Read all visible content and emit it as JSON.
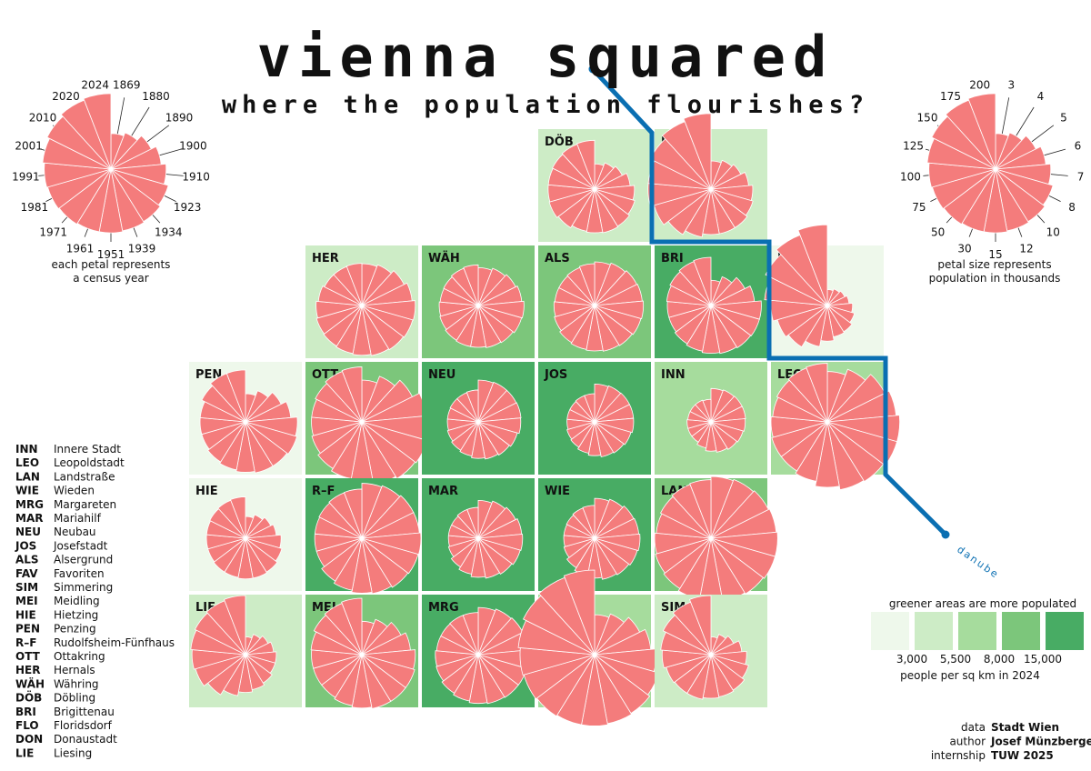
{
  "header": {
    "title": "vienna squared",
    "subtitle": "where the population flourishes?"
  },
  "river_label": "danube",
  "key_years": {
    "labels": [
      "1869",
      "1880",
      "1890",
      "1900",
      "1910",
      "1923",
      "1934",
      "1939",
      "1951",
      "1961",
      "1971",
      "1981",
      "1991",
      "2001",
      "2010",
      "2020",
      "2024"
    ],
    "caption_line1": "each petal represents",
    "caption_line2": "a census year"
  },
  "key_size": {
    "labels": [
      "3",
      "4",
      "5",
      "6",
      "7",
      "8",
      "10",
      "12",
      "15",
      "30",
      "50",
      "75",
      "100",
      "125",
      "150",
      "175",
      "200"
    ],
    "caption_line1": "petal size represents",
    "caption_line2": "population in thousands"
  },
  "density_legend": {
    "title": "greener areas are more populated",
    "thresholds": [
      "3,000",
      "5,500",
      "8,000",
      "15,000"
    ],
    "caption": "people per sq km in 2024"
  },
  "credits": [
    {
      "label": "data",
      "value": "Stadt Wien"
    },
    {
      "label": "author",
      "value": "Josef Münzberger"
    },
    {
      "label": "internship",
      "value": "TUW 2025"
    }
  ],
  "district_legend": [
    {
      "code": "INN",
      "name": "Innere Stadt"
    },
    {
      "code": "LEO",
      "name": "Leopoldstadt"
    },
    {
      "code": "LAN",
      "name": "Landstraße"
    },
    {
      "code": "WIE",
      "name": "Wieden"
    },
    {
      "code": "MRG",
      "name": "Margareten"
    },
    {
      "code": "MAR",
      "name": "Mariahilf"
    },
    {
      "code": "NEU",
      "name": "Neubau"
    },
    {
      "code": "JOS",
      "name": "Josefstadt"
    },
    {
      "code": "ALS",
      "name": "Alsergrund"
    },
    {
      "code": "FAV",
      "name": "Favoriten"
    },
    {
      "code": "SIM",
      "name": "Simmering"
    },
    {
      "code": "MEI",
      "name": "Meidling"
    },
    {
      "code": "HIE",
      "name": "Hietzing"
    },
    {
      "code": "PEN",
      "name": "Penzing"
    },
    {
      "code": "R–F",
      "name": "Rudolfsheim-Fünfhaus"
    },
    {
      "code": "OTT",
      "name": "Ottakring"
    },
    {
      "code": "HER",
      "name": "Hernals"
    },
    {
      "code": "WÄH",
      "name": "Währing"
    },
    {
      "code": "DÖB",
      "name": "Döbling"
    },
    {
      "code": "BRI",
      "name": "Brigittenau"
    },
    {
      "code": "FLO",
      "name": "Floridsdorf"
    },
    {
      "code": "DON",
      "name": "Donaustadt"
    },
    {
      "code": "LIE",
      "name": "Liesing"
    }
  ],
  "colors": {
    "petal": "#f47c7c",
    "petal_stroke": "#ffffff",
    "river": "#0a6fb2",
    "density": [
      "#eef8eb",
      "#cdecc6",
      "#a6dc9d",
      "#7cc67b",
      "#48ac64"
    ]
  },
  "chart_data": {
    "type": "rose-grid",
    "petal_unit": "population in thousands",
    "years": [
      "1869",
      "1880",
      "1890",
      "1900",
      "1910",
      "1923",
      "1934",
      "1939",
      "1951",
      "1961",
      "1971",
      "1981",
      "1991",
      "2001",
      "2010",
      "2020",
      "2024"
    ],
    "density_unit": "people per sq km in 2024",
    "density_classes": [
      "< 3,000",
      "3,000–5,500",
      "5,500–8,000",
      "8,000–15,000",
      "> 15,000"
    ],
    "districts": [
      {
        "code": "DÖB",
        "density_class": 1,
        "values": [
          20,
          25,
          30,
          40,
          50,
          55,
          60,
          62,
          60,
          58,
          65,
          70,
          68,
          68,
          70,
          73,
          75
        ]
      },
      {
        "code": "FLO",
        "density_class": 1,
        "values": [
          25,
          30,
          35,
          45,
          55,
          60,
          65,
          65,
          65,
          75,
          90,
          110,
          125,
          125,
          145,
          165,
          180
        ]
      },
      {
        "code": "HER",
        "density_class": 1,
        "values": [
          55,
          60,
          70,
          80,
          90,
          88,
          85,
          82,
          78,
          75,
          72,
          70,
          66,
          60,
          55,
          55,
          56
        ]
      },
      {
        "code": "WÄH",
        "density_class": 3,
        "values": [
          45,
          50,
          55,
          60,
          66,
          64,
          60,
          58,
          55,
          55,
          53,
          50,
          48,
          46,
          47,
          50,
          52
        ]
      },
      {
        "code": "ALS",
        "density_class": 3,
        "values": [
          60,
          65,
          70,
          72,
          75,
          73,
          70,
          68,
          65,
          63,
          60,
          55,
          52,
          50,
          50,
          52,
          55
        ]
      },
      {
        "code": "BRI",
        "density_class": 4,
        "values": [
          20,
          30,
          45,
          60,
          80,
          80,
          78,
          75,
          72,
          68,
          64,
          60,
          60,
          62,
          66,
          70,
          73
        ]
      },
      {
        "code": "DON",
        "density_class": 0,
        "values": [
          8,
          10,
          12,
          15,
          20,
          25,
          30,
          32,
          40,
          55,
          75,
          85,
          100,
          125,
          150,
          180,
          205
        ]
      },
      {
        "code": "PEN",
        "density_class": 0,
        "values": [
          25,
          35,
          50,
          65,
          85,
          90,
          85,
          85,
          80,
          75,
          70,
          65,
          65,
          65,
          75,
          85,
          85
        ]
      },
      {
        "code": "OTT",
        "density_class": 3,
        "values": [
          55,
          75,
          100,
          130,
          150,
          145,
          140,
          130,
          115,
          105,
          95,
          85,
          80,
          80,
          85,
          92,
          95
        ]
      },
      {
        "code": "NEU",
        "density_class": 4,
        "values": [
          55,
          57,
          57,
          58,
          57,
          52,
          48,
          45,
          42,
          38,
          35,
          32,
          30,
          30,
          31,
          31,
          32
        ]
      },
      {
        "code": "JOS",
        "density_class": 4,
        "values": [
          45,
          47,
          48,
          48,
          48,
          45,
          42,
          40,
          36,
          32,
          28,
          26,
          24,
          24,
          24,
          25,
          25
        ]
      },
      {
        "code": "INN",
        "density_class": 2,
        "values": [
          35,
          37,
          38,
          38,
          37,
          35,
          33,
          30,
          27,
          22,
          18,
          18,
          18,
          17,
          17,
          17,
          16
        ]
      },
      {
        "code": "LEO",
        "density_class": 2,
        "values": [
          80,
          100,
          130,
          150,
          165,
          165,
          155,
          150,
          135,
          115,
          105,
          105,
          100,
          95,
          100,
          105,
          108
        ]
      },
      {
        "code": "HIE",
        "density_class": 0,
        "values": [
          15,
          20,
          25,
          30,
          40,
          45,
          50,
          52,
          52,
          50,
          50,
          48,
          48,
          48,
          50,
          52,
          54
        ]
      },
      {
        "code": "R–F",
        "density_class": 4,
        "values": [
          95,
          100,
          105,
          105,
          110,
          108,
          105,
          100,
          95,
          88,
          80,
          70,
          70,
          70,
          72,
          75,
          76
        ]
      },
      {
        "code": "MAR",
        "density_class": 4,
        "values": [
          45,
          50,
          55,
          60,
          62,
          60,
          56,
          52,
          48,
          42,
          36,
          30,
          28,
          28,
          28,
          30,
          30
        ]
      },
      {
        "code": "WIE",
        "density_class": 4,
        "values": [
          50,
          55,
          60,
          62,
          65,
          62,
          58,
          55,
          50,
          45,
          38,
          32,
          30,
          30,
          31,
          33,
          34
        ]
      },
      {
        "code": "LAN",
        "density_class": 3,
        "values": [
          120,
          125,
          130,
          135,
          140,
          140,
          135,
          130,
          125,
          120,
          110,
          105,
          100,
          95,
          100,
          105,
          108
        ]
      },
      {
        "code": "LIE",
        "density_class": 1,
        "values": [
          10,
          15,
          20,
          25,
          30,
          30,
          35,
          40,
          45,
          55,
          70,
          85,
          90,
          95,
          100,
          105,
          110
        ]
      },
      {
        "code": "MEI",
        "density_class": 3,
        "values": [
          35,
          45,
          60,
          75,
          90,
          95,
          95,
          95,
          90,
          85,
          80,
          80,
          80,
          82,
          90,
          95,
          100
        ]
      },
      {
        "code": "MRG",
        "density_class": 4,
        "values": [
          70,
          75,
          78,
          80,
          80,
          80,
          80,
          78,
          75,
          70,
          65,
          60,
          58,
          55,
          55,
          56,
          56
        ]
      },
      {
        "code": "FAV",
        "density_class": 2,
        "values": [
          50,
          60,
          80,
          100,
          120,
          140,
          150,
          155,
          160,
          160,
          165,
          170,
          175,
          185,
          200,
          215,
          225
        ]
      },
      {
        "code": "SIM",
        "density_class": 1,
        "values": [
          10,
          15,
          20,
          30,
          40,
          48,
          55,
          58,
          60,
          65,
          65,
          68,
          75,
          80,
          90,
          100,
          110
        ]
      }
    ]
  }
}
